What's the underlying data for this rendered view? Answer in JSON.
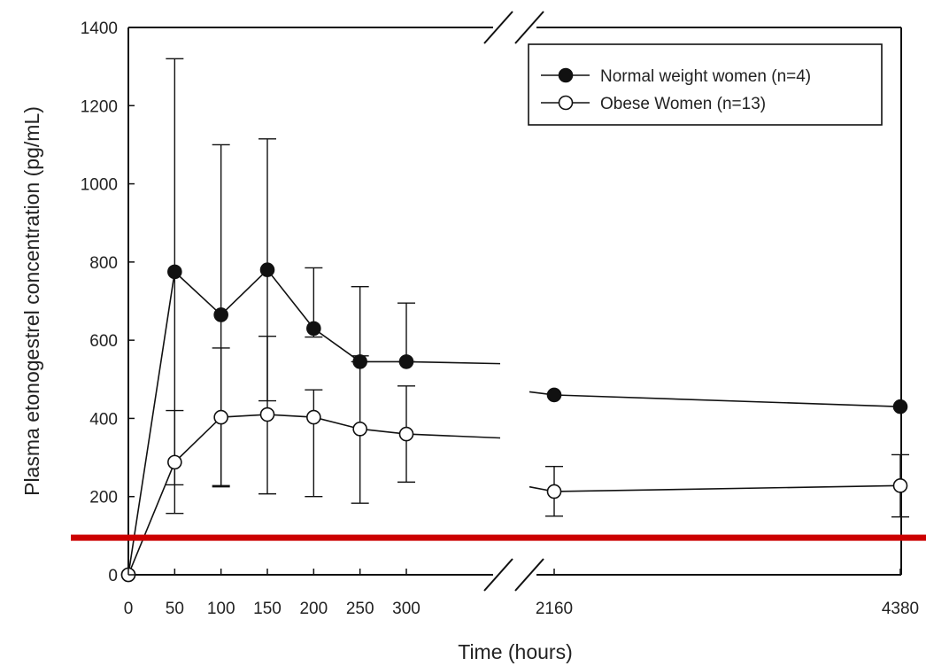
{
  "chart_data": {
    "type": "line",
    "title": "",
    "xlabel": "Time (hours)",
    "ylabel": "Plasma etonogestrel concentration (pg/mL)",
    "ylim": [
      0,
      1400
    ],
    "y_ticks": [
      "0",
      "200",
      "400",
      "600",
      "800",
      "1000",
      "1200",
      "1400"
    ],
    "x_ticks": [
      "0",
      "50",
      "100",
      "150",
      "200",
      "250",
      "300",
      "2160",
      "4380"
    ],
    "x_axis_break": true,
    "legend_position": "top-right",
    "series": [
      {
        "name": "Normal weight women (n=4)",
        "marker": "filled-circle",
        "color": "#000000",
        "x": [
          0,
          50,
          100,
          150,
          200,
          250,
          300,
          2160,
          4380
        ],
        "y": [
          0,
          775,
          665,
          780,
          630,
          545,
          545,
          460,
          430
        ],
        "err_high": [
          null,
          1320,
          1100,
          1115,
          785,
          737,
          695,
          null,
          null
        ],
        "err_low": [
          null,
          230,
          228,
          445,
          608,
          545,
          545,
          null,
          null
        ]
      },
      {
        "name": "Obese Women (n=13)",
        "marker": "open-circle",
        "color": "#000000",
        "x": [
          0,
          50,
          100,
          150,
          200,
          250,
          300,
          2160,
          4380
        ],
        "y": [
          0,
          288,
          403,
          410,
          403,
          373,
          360,
          213,
          228
        ],
        "err_high": [
          null,
          420,
          580,
          610,
          473,
          560,
          483,
          277,
          307
        ],
        "err_low": [
          null,
          157,
          225,
          207,
          200,
          183,
          237,
          150,
          148
        ]
      }
    ],
    "trend_lines": [
      {
        "series": 0,
        "x_from": 300,
        "x_to": 1100,
        "y_from": 545,
        "y_to": 540
      },
      {
        "series": 0,
        "x_from": 1700,
        "x_to": 2160,
        "y_from": 468,
        "y_to": 460
      },
      {
        "series": 1,
        "x_from": 300,
        "x_to": 1100,
        "y_from": 360,
        "y_to": 350
      },
      {
        "series": 1,
        "x_from": 1700,
        "x_to": 2160,
        "y_from": 225,
        "y_to": 213
      }
    ],
    "reference_line": {
      "y": 95,
      "color": "#cc0000"
    }
  }
}
